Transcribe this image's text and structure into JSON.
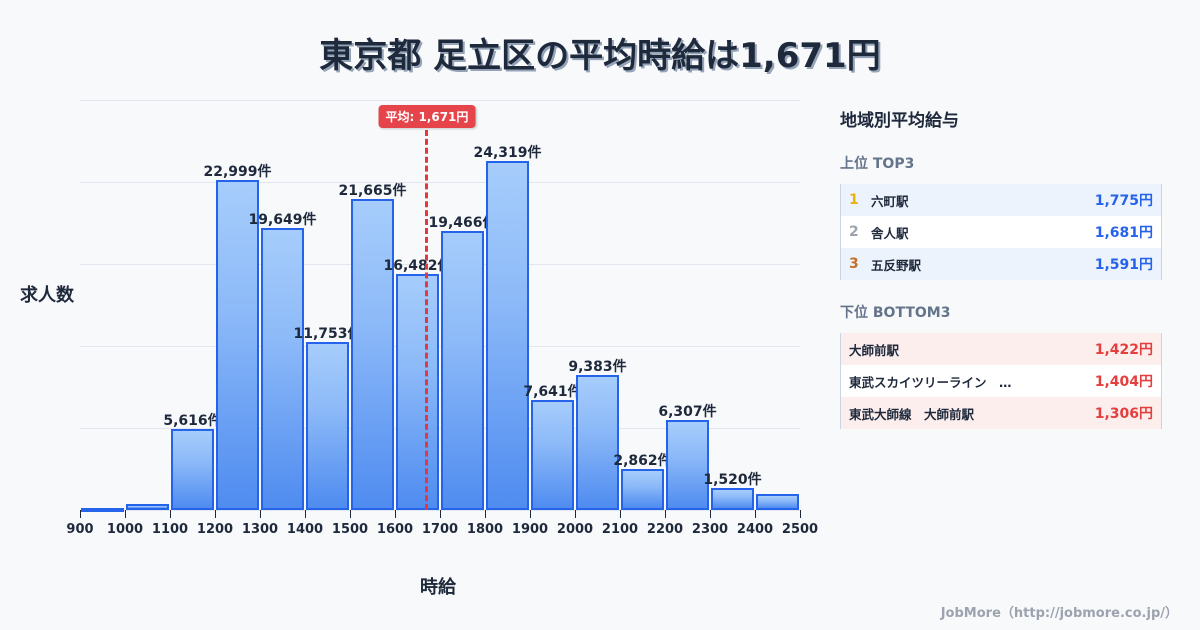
{
  "title": "東京都 足立区の平均時給は1,671円",
  "chart_data": {
    "type": "bar",
    "title": "東京都 足立区の平均時給は1,671円",
    "xlabel": "時給",
    "ylabel": "求人数",
    "categories": [
      "900-1000",
      "1000-1100",
      "1100-1200",
      "1200-1300",
      "1300-1400",
      "1400-1500",
      "1500-1600",
      "1600-1700",
      "1700-1800",
      "1800-1900",
      "1900-2000",
      "2000-2100",
      "2100-2200",
      "2200-2300",
      "2300-2400",
      "2400-2500"
    ],
    "values": [
      80,
      400,
      5616,
      22999,
      19649,
      11753,
      21665,
      16482,
      19466,
      24319,
      7641,
      9383,
      2862,
      6307,
      1520,
      1100
    ],
    "labels": [
      "",
      "",
      "5,616件",
      "22,999件",
      "19,649件",
      "11,753件",
      "21,665件",
      "16,482件",
      "19,466件",
      "24,319件",
      "7,641件",
      "9,383件",
      "2,862件",
      "6,307件",
      "1,520件",
      ""
    ],
    "x_ticks": [
      "900",
      "1000",
      "1100",
      "1200",
      "1300",
      "1400",
      "1500",
      "1600",
      "1700",
      "1800",
      "1900",
      "2000",
      "2100",
      "2200",
      "2300",
      "2400",
      "2500"
    ],
    "ylim": [
      0,
      28600
    ],
    "grid": true,
    "mean": 1671,
    "mean_label": "平均: 1,671円",
    "colors": {
      "bar_border": "#2563eb",
      "bar_top": "#a6cdfb",
      "bar_bottom": "#4f8cf0",
      "mean_line": "#e5383b"
    }
  },
  "panel": {
    "title": "地域別平均給与",
    "top_title": "上位 TOP3",
    "top": [
      {
        "rank": "1",
        "name": "六町駅",
        "value": "1,775円",
        "rank_color": "#eab308"
      },
      {
        "rank": "2",
        "name": "舎人駅",
        "value": "1,681円",
        "rank_color": "#9ca3af"
      },
      {
        "rank": "3",
        "name": "五反野駅",
        "value": "1,591円",
        "rank_color": "#c2712b"
      }
    ],
    "bottom_title": "下位 BOTTOM3",
    "bottom": [
      {
        "name": "大師前駅",
        "value": "1,422円"
      },
      {
        "name": "東武スカイツリーライン　…",
        "value": "1,404円"
      },
      {
        "name": "東武大師線　大師前駅",
        "value": "1,306円"
      }
    ]
  },
  "footer": "JobMore（http://jobmore.co.jp/）"
}
